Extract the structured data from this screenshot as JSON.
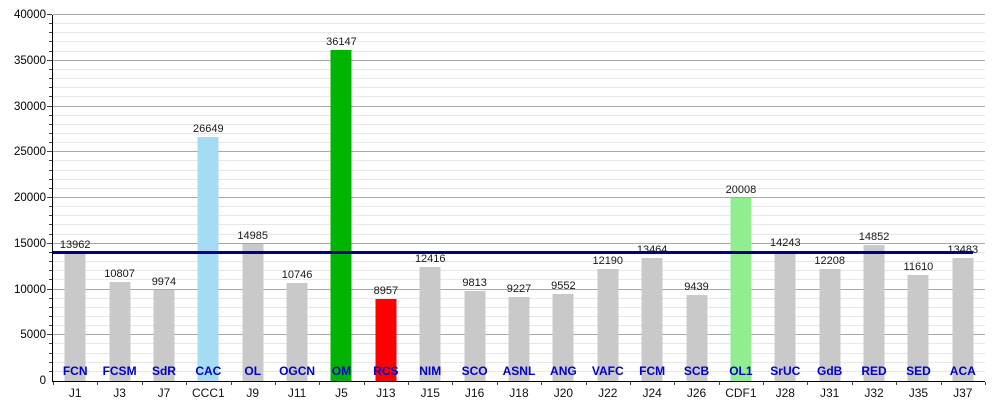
{
  "chart_data": {
    "type": "bar",
    "title": "",
    "xlabel": "",
    "ylabel": "",
    "ylim": [
      0,
      40000
    ],
    "grid": {
      "minor_step": 1000,
      "major_step": 5000
    },
    "legend": "none",
    "y_ticks": [
      "0",
      "5000",
      "10000",
      "15000",
      "20000",
      "25000",
      "30000",
      "35000",
      "40000"
    ],
    "categories": [
      "J1",
      "J3",
      "J7",
      "CCC1",
      "J9",
      "J11",
      "J5",
      "J13",
      "J15",
      "J16",
      "J18",
      "J20",
      "J22",
      "J24",
      "J26",
      "CDF1",
      "J28",
      "J31",
      "J32",
      "J35",
      "J37"
    ],
    "teams": [
      "FCN",
      "FCSM",
      "SdR",
      "CAC",
      "OL",
      "OGCN",
      "OM",
      "RCS",
      "NIM",
      "SCO",
      "ASNL",
      "ANG",
      "VAFC",
      "FCM",
      "SCB",
      "OL1",
      "SrUC",
      "GdB",
      "RED",
      "SED",
      "ACA"
    ],
    "values": [
      13962,
      10807,
      9974,
      26649,
      14985,
      10746,
      36147,
      8957,
      12416,
      9813,
      9227,
      9552,
      12190,
      13464,
      9439,
      20008,
      14243,
      12208,
      14852,
      11610,
      13483
    ],
    "value_labels": [
      "13962",
      "10807",
      "9974",
      "26649",
      "14985",
      "10746",
      "36147",
      "8957",
      "12416",
      "9813",
      "9227",
      "9552",
      "12190",
      "13464",
      "9439",
      "20008",
      "14243",
      "12208",
      "14852",
      "11610",
      "13483"
    ],
    "bar_default_color": "#c9c9c9",
    "highlight_colors": {
      "3": "#a4dcf4",
      "6": "#00b400",
      "7": "#ff0000",
      "15": "#90ee90"
    },
    "average_line": {
      "value": 14035,
      "color": "#000080"
    }
  },
  "colors": {
    "axis": "#000000",
    "gridline_minor": "#e7e7e7",
    "gridline_major": "#a8a8a8",
    "team_label": "#0000cc",
    "value_label": "#191919"
  }
}
